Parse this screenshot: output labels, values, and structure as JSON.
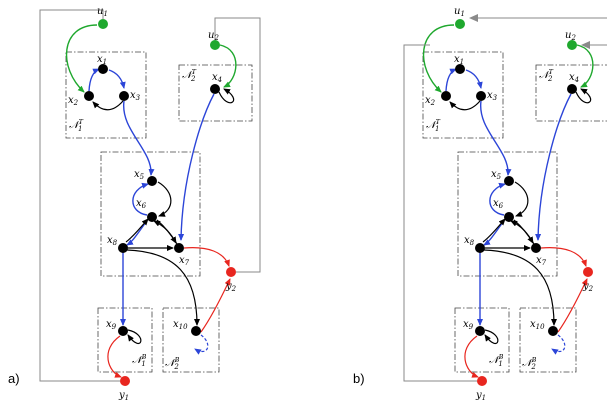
{
  "panels": [
    {
      "id": "a",
      "panel_label": "a)",
      "inputs": [
        {
          "base": "u",
          "sub": "1"
        },
        {
          "base": "u",
          "sub": "2"
        }
      ],
      "outputs": [
        {
          "base": "y",
          "sub": "1"
        },
        {
          "base": "y",
          "sub": "2"
        }
      ],
      "states": [
        {
          "base": "x",
          "sub": "1"
        },
        {
          "base": "x",
          "sub": "2"
        },
        {
          "base": "x",
          "sub": "3"
        },
        {
          "base": "x",
          "sub": "4"
        },
        {
          "base": "x",
          "sub": "5"
        },
        {
          "base": "x",
          "sub": "6"
        },
        {
          "base": "x",
          "sub": "7"
        },
        {
          "base": "x",
          "sub": "8"
        },
        {
          "base": "x",
          "sub": "9"
        },
        {
          "base": "x",
          "sub": "10"
        }
      ],
      "subsystems": [
        {
          "base": "N",
          "sub": "1",
          "sup": "T"
        },
        {
          "base": "N",
          "sub": "2",
          "sup": "T"
        },
        {
          "base": "N",
          "sub": "1",
          "sup": "B"
        },
        {
          "base": "N",
          "sub": "2",
          "sup": "B"
        }
      ]
    },
    {
      "id": "b",
      "panel_label": "b)",
      "inputs": [
        {
          "base": "u",
          "sub": "1"
        },
        {
          "base": "u",
          "sub": "2"
        }
      ],
      "outputs": [
        {
          "base": "y",
          "sub": "1"
        },
        {
          "base": "y",
          "sub": "2"
        }
      ],
      "states": [
        {
          "base": "x",
          "sub": "1"
        },
        {
          "base": "x",
          "sub": "2"
        },
        {
          "base": "x",
          "sub": "3"
        },
        {
          "base": "x",
          "sub": "4"
        },
        {
          "base": "x",
          "sub": "5"
        },
        {
          "base": "x",
          "sub": "6"
        },
        {
          "base": "x",
          "sub": "7"
        },
        {
          "base": "x",
          "sub": "8"
        },
        {
          "base": "x",
          "sub": "9"
        },
        {
          "base": "x",
          "sub": "10"
        }
      ],
      "subsystems": [
        {
          "base": "N",
          "sub": "1",
          "sup": "T"
        },
        {
          "base": "N",
          "sub": "2",
          "sup": "T"
        },
        {
          "base": "N",
          "sub": "1",
          "sup": "B"
        },
        {
          "base": "N",
          "sub": "2",
          "sup": "B"
        }
      ]
    }
  ],
  "colors": {
    "input_node": "#1fa82e",
    "output_node": "#e8261f",
    "state_node": "#000000",
    "highlight_edge": "#2c45d8",
    "feedback_wire": "#8a8a8a"
  }
}
